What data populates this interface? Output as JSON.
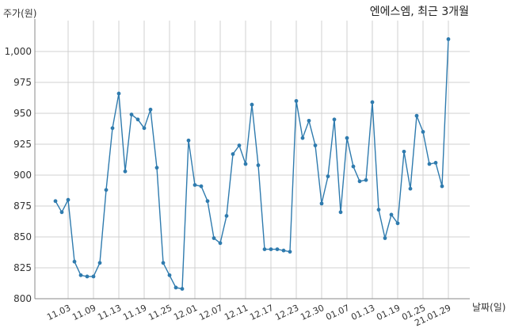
{
  "chart_data": {
    "type": "line",
    "title": "엔에스엠, 최근 3개월",
    "ylabel": "주가(원)",
    "xlabel": "날짜(일)",
    "ylim": [
      800,
      1025
    ],
    "yticks": [
      800,
      825,
      850,
      875,
      900,
      925,
      950,
      975,
      1000
    ],
    "ytick_labels": [
      "800",
      "825",
      "850",
      "875",
      "900",
      "925",
      "950",
      "975",
      "1,000"
    ],
    "xtick_labels": [
      "11.03",
      "11.09",
      "11.13",
      "11.19",
      "11.25",
      "12.01",
      "12.07",
      "12.11",
      "12.17",
      "12.23",
      "12.30",
      "01.07",
      "01.13",
      "01.19",
      "01.25",
      "21.01.29"
    ],
    "xtick_index": [
      2,
      6,
      10,
      14,
      18,
      22,
      26,
      30,
      34,
      38,
      42,
      46,
      50,
      54,
      58,
      62
    ],
    "grid": true,
    "line_color": "#2f7bae",
    "series": [
      {
        "values": [
          879,
          870,
          880,
          830,
          819,
          818,
          818,
          829,
          888,
          938,
          966,
          903,
          949,
          945,
          938,
          953,
          906,
          829,
          819,
          809,
          808,
          928,
          892,
          891,
          879,
          849,
          845,
          867,
          917,
          924,
          909,
          957,
          908,
          840,
          840,
          840,
          839,
          838,
          960,
          930,
          944,
          924,
          877,
          899,
          945,
          870,
          930,
          907,
          895,
          896,
          959,
          872,
          849,
          868,
          861,
          919,
          889,
          948,
          935,
          909,
          910,
          891,
          1010
        ]
      }
    ]
  }
}
